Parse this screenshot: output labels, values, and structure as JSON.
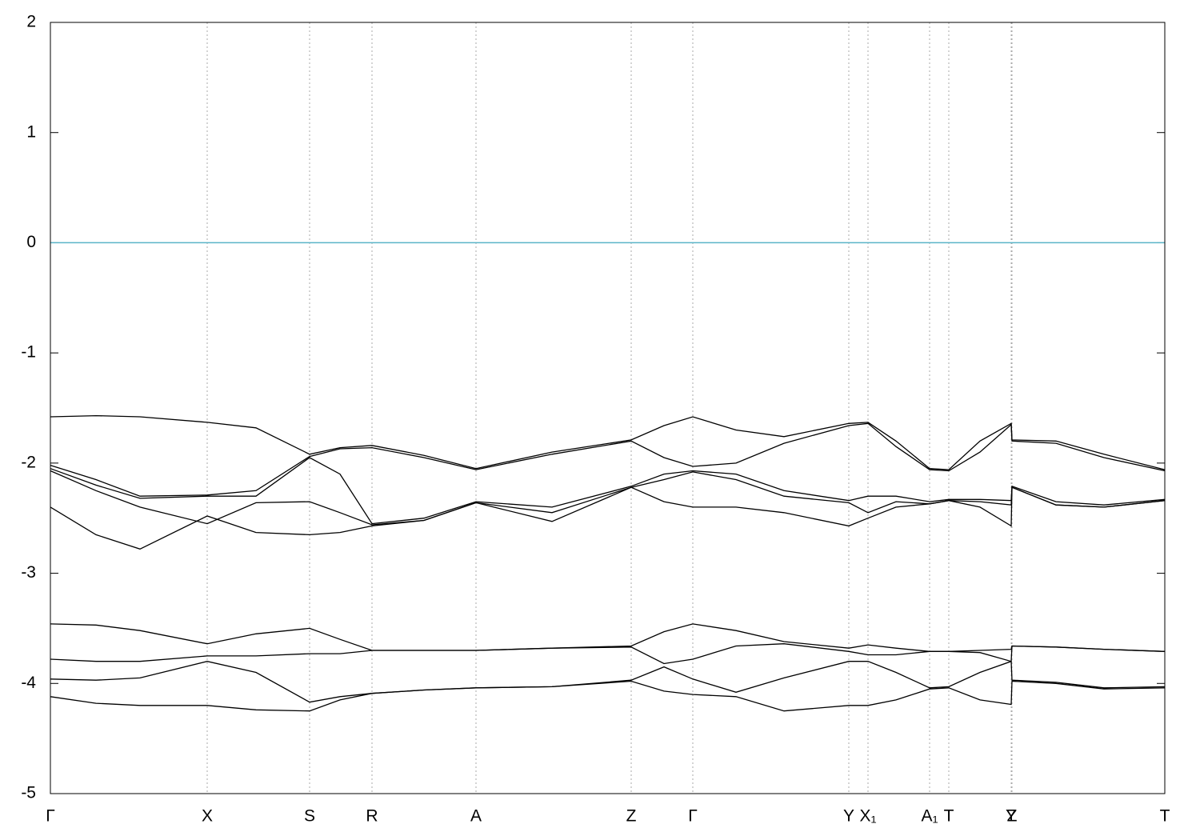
{
  "chart_data": {
    "type": "line",
    "x": [
      0,
      57,
      112,
      196,
      257,
      324,
      362,
      402,
      467,
      532,
      627,
      726,
      767,
      803,
      857,
      917,
      998,
      1022,
      1057,
      1099,
      1123,
      1162,
      1201,
      1202,
      1257,
      1317,
      1393
    ],
    "xlim": [
      0,
      1393
    ],
    "xticks": [
      {
        "value": 0,
        "label": "Γ"
      },
      {
        "value": 196,
        "label": "X"
      },
      {
        "value": 324,
        "label": "S"
      },
      {
        "value": 402,
        "label": "R"
      },
      {
        "value": 532,
        "label": "A"
      },
      {
        "value": 726,
        "label": "Z"
      },
      {
        "value": 803,
        "label": "Γ"
      },
      {
        "value": 998,
        "label": "Y"
      },
      {
        "value": 1022,
        "label": "X₁"
      },
      {
        "value": 1099,
        "label": "A₁"
      },
      {
        "value": 1123,
        "label": "T"
      },
      {
        "value": 1201,
        "label": "Y"
      },
      {
        "value": 1202,
        "label": "Z"
      },
      {
        "value": 1393,
        "label": "T"
      }
    ],
    "ylim": [
      -5,
      2
    ],
    "yticks": [
      -5,
      -4,
      -3,
      -2,
      -1,
      0,
      1,
      2
    ],
    "reference_line": {
      "value": 0,
      "color": "#5ab4c8"
    },
    "series": [
      {
        "color": "#000000",
        "values": [
          -1.58,
          -1.57,
          -1.58,
          -1.63,
          -1.68,
          -1.92,
          -1.86,
          -1.84,
          -1.93,
          -2.05,
          -1.9,
          -1.79,
          -1.66,
          -1.58,
          -1.7,
          -1.76,
          -1.64,
          -1.63,
          -1.8,
          -2.05,
          -2.06,
          -1.8,
          -1.64,
          -1.79,
          -1.8,
          -1.92,
          -2.06
        ]
      },
      {
        "color": "#000000",
        "values": [
          -2.02,
          -2.15,
          -2.3,
          -2.29,
          -2.25,
          -1.94,
          -1.87,
          -1.86,
          -1.95,
          -2.06,
          -1.92,
          -1.8,
          -1.95,
          -2.03,
          -2.0,
          -1.82,
          -1.66,
          -1.64,
          -1.85,
          -2.06,
          -2.07,
          -1.9,
          -1.65,
          -1.8,
          -1.82,
          -1.95,
          -2.07
        ]
      },
      {
        "color": "#000000",
        "values": [
          -2.05,
          -2.2,
          -2.32,
          -2.3,
          -2.3,
          -1.95,
          -2.1,
          -2.55,
          -2.5,
          -2.35,
          -2.4,
          -2.21,
          -2.1,
          -2.07,
          -2.1,
          -2.25,
          -2.34,
          -2.3,
          -2.3,
          -2.35,
          -2.33,
          -2.33,
          -2.34,
          -2.21,
          -2.35,
          -2.38,
          -2.33
        ]
      },
      {
        "color": "#000000",
        "values": [
          -2.07,
          -2.25,
          -2.4,
          -2.55,
          -2.36,
          -2.35,
          -2.45,
          -2.56,
          -2.52,
          -2.36,
          -2.45,
          -2.22,
          -2.15,
          -2.08,
          -2.15,
          -2.3,
          -2.36,
          -2.45,
          -2.35,
          -2.37,
          -2.34,
          -2.35,
          -2.38,
          -2.22,
          -2.38,
          -2.4,
          -2.34
        ]
      },
      {
        "color": "#000000",
        "values": [
          -2.4,
          -2.65,
          -2.78,
          -2.48,
          -2.63,
          -2.65,
          -2.63,
          -2.57,
          -2.52,
          -2.36,
          -2.53,
          -2.22,
          -2.35,
          -2.4,
          -2.4,
          -2.45,
          -2.57,
          -2.5,
          -2.4,
          -2.37,
          -2.34,
          -2.4,
          -2.57,
          -2.22,
          -2.38,
          -2.4,
          -2.34
        ]
      },
      {
        "color": "#000000",
        "values": [
          -3.46,
          -3.47,
          -3.52,
          -3.64,
          -3.55,
          -3.5,
          -3.6,
          -3.7,
          -3.7,
          -3.7,
          -3.68,
          -3.66,
          -3.53,
          -3.46,
          -3.52,
          -3.62,
          -3.68,
          -3.65,
          -3.68,
          -3.71,
          -3.71,
          -3.7,
          -3.69,
          -3.66,
          -3.67,
          -3.69,
          -3.71
        ]
      },
      {
        "color": "#000000",
        "values": [
          -3.78,
          -3.8,
          -3.8,
          -3.75,
          -3.75,
          -3.73,
          -3.73,
          -3.7,
          -3.7,
          -3.7,
          -3.68,
          -3.67,
          -3.82,
          -3.78,
          -3.66,
          -3.64,
          -3.71,
          -3.74,
          -3.74,
          -3.71,
          -3.71,
          -3.72,
          -3.8,
          -3.66,
          -3.67,
          -3.69,
          -3.71
        ]
      },
      {
        "color": "#000000",
        "values": [
          -3.96,
          -3.97,
          -3.95,
          -3.8,
          -3.9,
          -4.17,
          -4.12,
          -4.09,
          -4.06,
          -4.04,
          -4.03,
          -3.97,
          -3.85,
          -3.96,
          -4.08,
          -3.95,
          -3.8,
          -3.8,
          -3.9,
          -4.04,
          -4.03,
          -3.9,
          -3.8,
          -3.97,
          -3.99,
          -4.04,
          -4.03
        ]
      },
      {
        "color": "#000000",
        "values": [
          -4.12,
          -4.18,
          -4.2,
          -4.2,
          -4.24,
          -4.25,
          -4.15,
          -4.09,
          -4.06,
          -4.04,
          -4.03,
          -3.98,
          -4.07,
          -4.1,
          -4.12,
          -4.25,
          -4.2,
          -4.2,
          -4.15,
          -4.05,
          -4.04,
          -4.15,
          -4.19,
          -3.98,
          -4.0,
          -4.05,
          -4.04
        ]
      }
    ]
  }
}
